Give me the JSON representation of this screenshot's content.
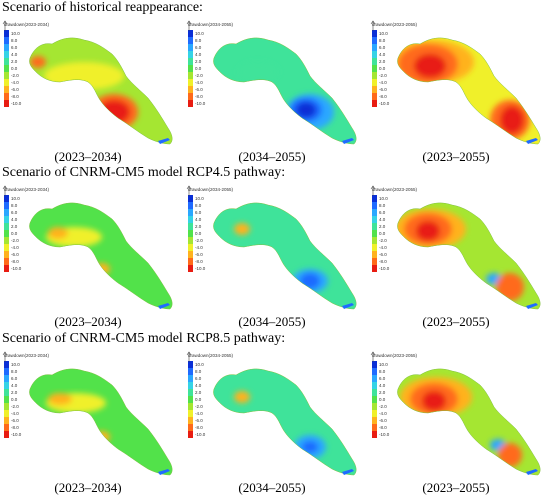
{
  "figure": {
    "sections": [
      {
        "title": "Scenario of historical reappearance:",
        "panels": [
          {
            "legend_title": "drawdown(2023-2034)",
            "caption": "(2023–2034)",
            "palette": "hist_a"
          },
          {
            "legend_title": "drawdown(2034-2055)",
            "caption": "(2034–2055)",
            "palette": "hist_b"
          },
          {
            "legend_title": "drawdown(2023-2055)",
            "caption": "(2023–2055)",
            "palette": "hist_c"
          }
        ]
      },
      {
        "title": "Scenario of CNRM-CM5 model RCP4.5 pathway:",
        "panels": [
          {
            "legend_title": "drawdown(2023-2034)",
            "caption": "(2023–2034)",
            "palette": "r45_a"
          },
          {
            "legend_title": "drawdown(2034-2055)",
            "caption": "(2034–2055)",
            "palette": "r45_b"
          },
          {
            "legend_title": "drawdown(2023-2055)",
            "caption": "(2023–2055)",
            "palette": "r45_c"
          }
        ]
      },
      {
        "title": "Scenario of CNRM-CM5 model RCP8.5 pathway:",
        "panels": [
          {
            "legend_title": "drawdown(2023-2034)",
            "caption": "(2023–2034)",
            "palette": "r85_a"
          },
          {
            "legend_title": "drawdown(2034-2055)",
            "caption": "(2034–2055)",
            "palette": "r85_b"
          },
          {
            "legend_title": "drawdown(2023-2055)",
            "caption": "(2023–2055)",
            "palette": "r85_c"
          }
        ]
      }
    ],
    "legend_ticks": [
      "10.0",
      "8.0",
      "6.0",
      "4.0",
      "2.0",
      "0.0",
      "-2.0",
      "-4.0",
      "-6.0",
      "-8.0",
      "-10.0"
    ],
    "legend_colors": [
      "#0a2fd6",
      "#1f6bff",
      "#2aa7ff",
      "#35d3e6",
      "#3fe39a",
      "#52e24a",
      "#a5e632",
      "#f0f02a",
      "#ffb21f",
      "#ff6a1a",
      "#e81c12"
    ]
  }
}
